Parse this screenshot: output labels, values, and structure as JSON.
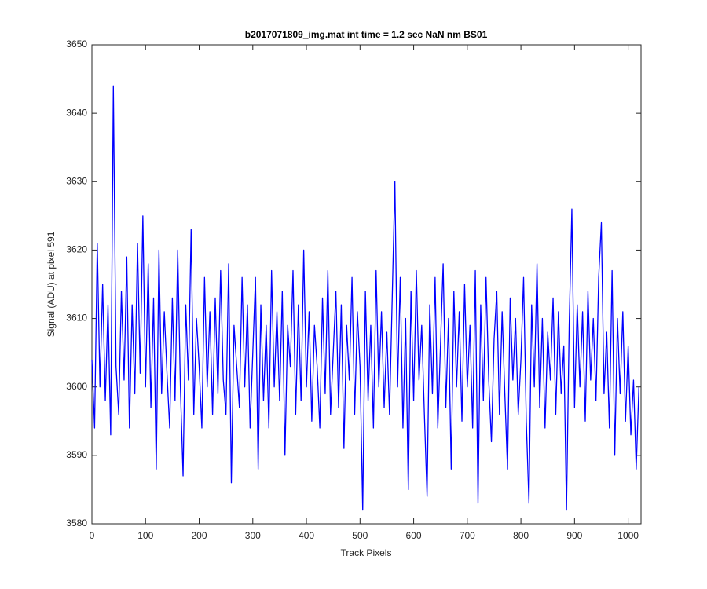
{
  "chart_data": {
    "type": "line",
    "title": "b2017071809_img.mat int time = 1.2 sec  NaN nm BS01",
    "x_label": "Track Pixels",
    "y_label": "Signal (ADU) at pixel 591",
    "x": [
      0,
      5,
      10,
      15,
      20,
      25,
      30,
      35,
      40,
      45,
      50,
      55,
      60,
      65,
      70,
      75,
      80,
      85,
      90,
      95,
      100,
      105,
      110,
      115,
      120,
      125,
      130,
      135,
      140,
      145,
      150,
      155,
      160,
      165,
      170,
      175,
      180,
      185,
      190,
      195,
      200,
      205,
      210,
      215,
      220,
      225,
      230,
      235,
      240,
      245,
      250,
      255,
      260,
      265,
      270,
      275,
      280,
      285,
      290,
      295,
      300,
      305,
      310,
      315,
      320,
      325,
      330,
      335,
      340,
      345,
      350,
      355,
      360,
      365,
      370,
      375,
      380,
      385,
      390,
      395,
      400,
      405,
      410,
      415,
      420,
      425,
      430,
      435,
      440,
      445,
      450,
      455,
      460,
      465,
      470,
      475,
      480,
      485,
      490,
      495,
      500,
      505,
      510,
      515,
      520,
      525,
      530,
      535,
      540,
      545,
      550,
      555,
      560,
      565,
      570,
      575,
      580,
      585,
      590,
      595,
      600,
      605,
      610,
      615,
      620,
      625,
      630,
      635,
      640,
      645,
      650,
      655,
      660,
      665,
      670,
      675,
      680,
      685,
      690,
      695,
      700,
      705,
      710,
      715,
      720,
      725,
      730,
      735,
      740,
      745,
      750,
      755,
      760,
      765,
      770,
      775,
      780,
      785,
      790,
      795,
      800,
      805,
      810,
      815,
      820,
      825,
      830,
      835,
      840,
      845,
      850,
      855,
      860,
      865,
      870,
      875,
      880,
      885,
      890,
      895,
      900,
      905,
      910,
      915,
      920,
      925,
      930,
      935,
      940,
      945,
      950,
      955,
      960,
      965,
      970,
      975,
      980,
      985,
      990,
      995,
      1000,
      1005,
      1010,
      1015,
      1020
    ],
    "series": [
      {
        "color": "#0000ff",
        "values": [
          3604,
          3594,
          3621,
          3600,
          3615,
          3598,
          3612,
          3593,
          3644,
          3603,
          3596,
          3614,
          3601,
          3619,
          3594,
          3612,
          3599,
          3621,
          3602,
          3625,
          3600,
          3618,
          3597,
          3613,
          3588,
          3620,
          3599,
          3611,
          3602,
          3594,
          3613,
          3598,
          3620,
          3600,
          3587,
          3612,
          3601,
          3623,
          3596,
          3610,
          3603,
          3594,
          3616,
          3600,
          3611,
          3596,
          3613,
          3599,
          3617,
          3601,
          3596,
          3618,
          3586,
          3609,
          3603,
          3597,
          3616,
          3600,
          3612,
          3594,
          3605,
          3616,
          3588,
          3612,
          3598,
          3609,
          3594,
          3617,
          3600,
          3611,
          3598,
          3614,
          3590,
          3609,
          3603,
          3617,
          3596,
          3612,
          3598,
          3620,
          3600,
          3611,
          3595,
          3609,
          3603,
          3594,
          3613,
          3599,
          3617,
          3596,
          3605,
          3614,
          3597,
          3612,
          3591,
          3609,
          3601,
          3616,
          3596,
          3611,
          3603,
          3582,
          3614,
          3598,
          3609,
          3594,
          3617,
          3600,
          3611,
          3597,
          3608,
          3596,
          3613,
          3630,
          3600,
          3616,
          3594,
          3610,
          3585,
          3614,
          3598,
          3617,
          3601,
          3609,
          3596,
          3584,
          3612,
          3599,
          3616,
          3594,
          3606,
          3618,
          3597,
          3610,
          3588,
          3614,
          3600,
          3611,
          3595,
          3615,
          3600,
          3609,
          3594,
          3617,
          3583,
          3612,
          3598,
          3616,
          3601,
          3592,
          3607,
          3614,
          3596,
          3611,
          3599,
          3588,
          3613,
          3601,
          3610,
          3596,
          3604,
          3616,
          3595,
          3583,
          3612,
          3600,
          3618,
          3597,
          3610,
          3594,
          3608,
          3601,
          3613,
          3596,
          3611,
          3599,
          3606,
          3582,
          3609,
          3626,
          3597,
          3612,
          3600,
          3611,
          3595,
          3614,
          3601,
          3610,
          3598,
          3616,
          3624,
          3599,
          3608,
          3594,
          3617,
          3590,
          3610,
          3599,
          3611,
          3595,
          3606,
          3593,
          3601,
          3588,
          3600
        ]
      }
    ],
    "xlim": [
      0,
      1024
    ],
    "ylim": [
      3580,
      3650
    ],
    "xticks": [
      0,
      100,
      200,
      300,
      400,
      500,
      600,
      700,
      800,
      900,
      1000
    ],
    "yticks": [
      3580,
      3590,
      3600,
      3610,
      3620,
      3630,
      3640,
      3650
    ],
    "grid": false
  }
}
